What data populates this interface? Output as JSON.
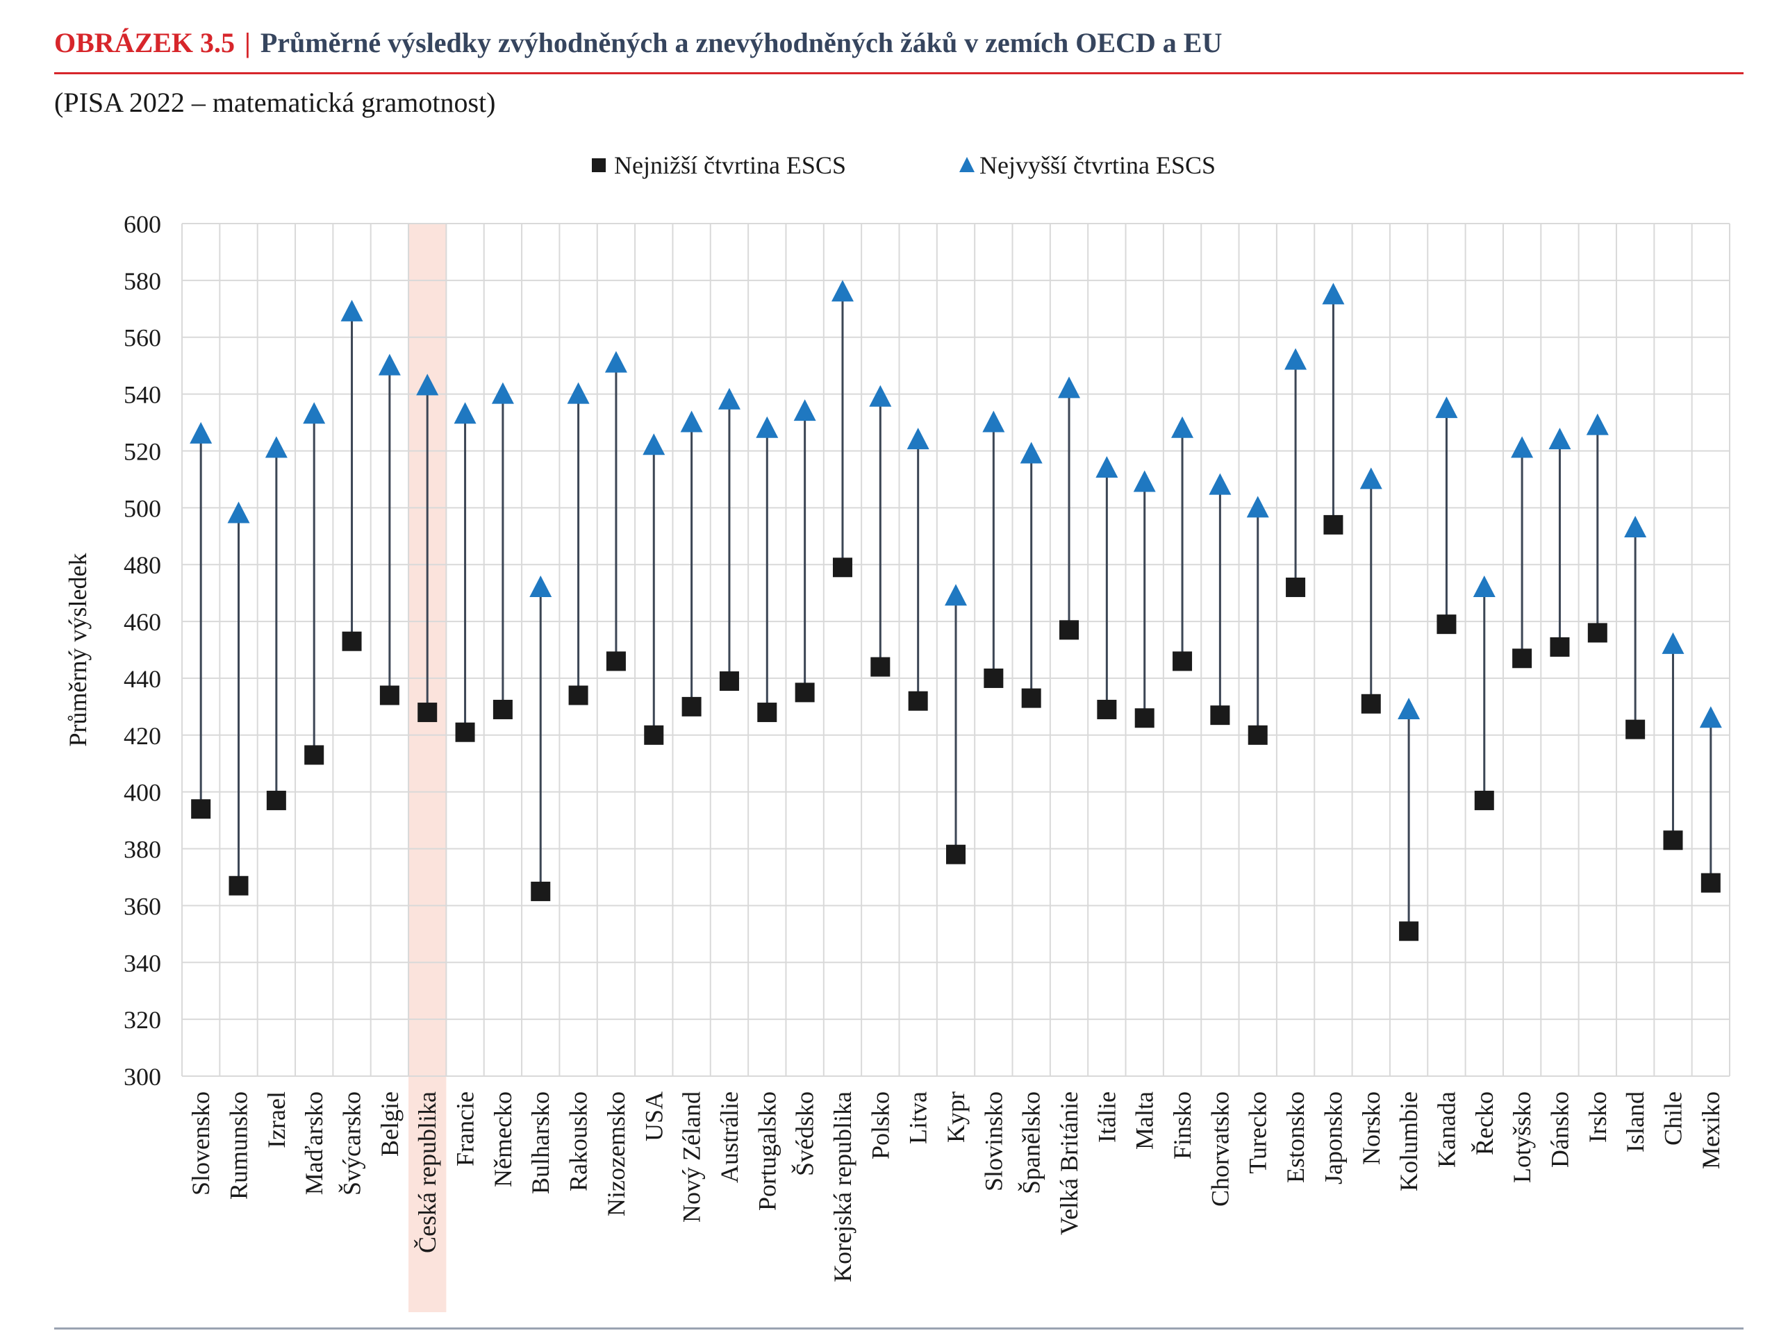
{
  "header": {
    "figure_label": "OBRÁZEK 3.5",
    "separator": "|",
    "title": "Průměrné výsledky zvýhodněných a znevýhodněných žáků v zemích OECD a EU",
    "subtitle": "(PISA 2022 – matematická gramotnost)"
  },
  "colors": {
    "accent_red": "#d7262b",
    "title_navy": "#36455e",
    "highlight": "#fbe3dc",
    "low_marker": "#1a1a1a",
    "high_marker": "#1f78c1",
    "connector": "#3c4655",
    "grid": "#d9d9d9"
  },
  "chart_data": {
    "type": "dot-range",
    "ylabel": "Průměrný výsledek",
    "xlabel": "",
    "ylim": [
      300,
      600
    ],
    "y_tick_step": 20,
    "grid": true,
    "legend_position": "top-center",
    "highlighted_category": "Česká republika",
    "categories": [
      "Slovensko",
      "Rumunsko",
      "Izrael",
      "Maďarsko",
      "Švýcarsko",
      "Belgie",
      "Česká republika",
      "Francie",
      "Německo",
      "Bulharsko",
      "Rakousko",
      "Nizozemsko",
      "USA",
      "Nový Zéland",
      "Austrálie",
      "Portugalsko",
      "Švédsko",
      "Korejská republika",
      "Polsko",
      "Litva",
      "Kypr",
      "Slovinsko",
      "Španělsko",
      "Velká Británie",
      "Itálie",
      "Malta",
      "Finsko",
      "Chorvatsko",
      "Turecko",
      "Estonsko",
      "Japonsko",
      "Norsko",
      "Kolumbie",
      "Kanada",
      "Řecko",
      "Lotyšsko",
      "Dánsko",
      "Irsko",
      "Island",
      "Chile",
      "Mexiko"
    ],
    "series": [
      {
        "name": "Nejnižší čtvrtina ESCS",
        "marker": "square",
        "values": [
          394,
          367,
          397,
          413,
          453,
          434,
          428,
          421,
          429,
          365,
          434,
          446,
          420,
          430,
          439,
          428,
          435,
          479,
          444,
          432,
          378,
          440,
          433,
          457,
          429,
          426,
          446,
          427,
          420,
          472,
          494,
          431,
          351,
          459,
          397,
          447,
          451,
          456,
          422,
          383,
          368
        ]
      },
      {
        "name": "Nejvyšší čtvrtina ESCS",
        "marker": "triangle",
        "values": [
          526,
          498,
          521,
          533,
          569,
          550,
          543,
          533,
          540,
          472,
          540,
          551,
          522,
          530,
          538,
          528,
          534,
          576,
          539,
          524,
          469,
          530,
          519,
          542,
          514,
          509,
          528,
          508,
          500,
          552,
          575,
          510,
          429,
          535,
          472,
          521,
          524,
          529,
          493,
          452,
          426
        ]
      }
    ]
  }
}
